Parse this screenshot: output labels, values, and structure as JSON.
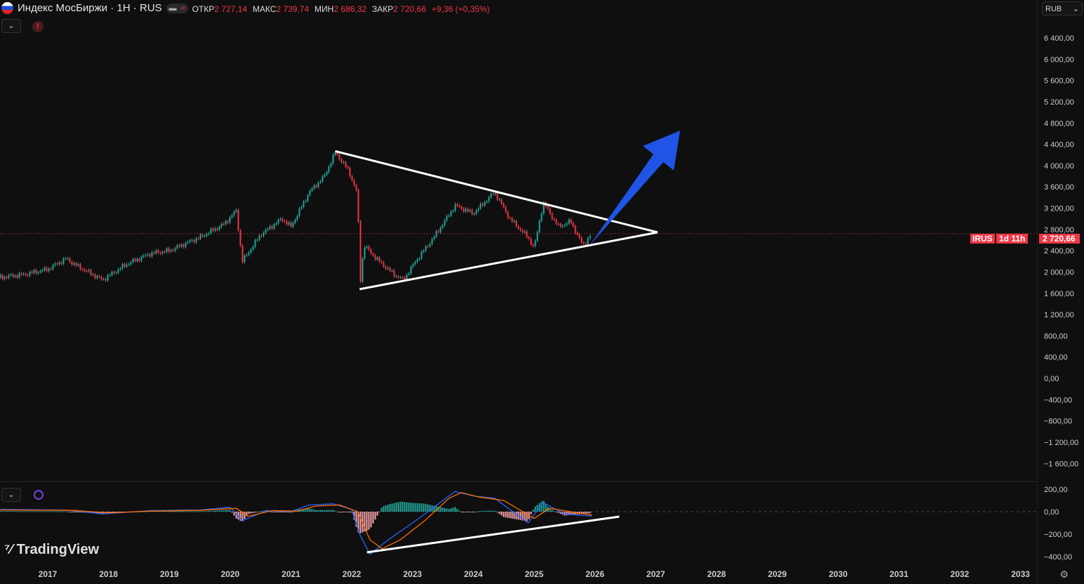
{
  "header": {
    "title": "Индекс МосБиржи · 1H · RUS",
    "open_label": "ОТКР",
    "open": "2 727,14",
    "high_label": "МАКС",
    "high": "2 739,74",
    "low_label": "МИН",
    "low": "2 686,32",
    "close_label": "ЗАКР",
    "close": "2 720,66",
    "change": "+9,36 (+0,35%)",
    "currency": "RUB"
  },
  "price_tag": {
    "symbol": "IRUS",
    "price": "2 720,66",
    "countdown": "1d 11h"
  },
  "colors": {
    "up": "#26a69a",
    "down": "#f23645",
    "drawing": "#ffffff",
    "arrow": "#1f54e6",
    "macd": "#2962ff",
    "signal": "#ff6d00"
  },
  "chart_data": [
    {
      "type": "line",
      "pane": "price",
      "yticks": [
        6400,
        6000,
        5600,
        5200,
        4800,
        4400,
        4000,
        3600,
        3200,
        2800,
        2400,
        2000,
        1600,
        1200,
        800,
        400,
        0,
        -400,
        -800,
        -1200,
        -1600
      ],
      "ytick_labels": [
        "6 400,00",
        "6 000,00",
        "5 600,00",
        "5 200,00",
        "4 800,00",
        "4 400,00",
        "4 000,00",
        "3 600,00",
        "3 200,00",
        "2 800,00",
        "2 400,00",
        "2 000,00",
        "1 600,00",
        "1 200,00",
        "800,00",
        "400,00",
        "0,00",
        "−400,00",
        "−800,00",
        "−1 200,00",
        "−1 600,00"
      ],
      "ylim": [
        -1700,
        6600
      ],
      "xlim": [
        2016.22,
        2035.0
      ],
      "last_price": 2720.66,
      "series": [
        [
          2016.22,
          1900
        ],
        [
          2016.6,
          1950
        ],
        [
          2017.0,
          2050
        ],
        [
          2017.3,
          2250
        ],
        [
          2017.5,
          2100
        ],
        [
          2017.9,
          1850
        ],
        [
          2018.3,
          2150
        ],
        [
          2018.7,
          2350
        ],
        [
          2019.0,
          2400
        ],
        [
          2019.5,
          2650
        ],
        [
          2019.9,
          2900
        ],
        [
          2020.1,
          3150
        ],
        [
          2020.2,
          2200
        ],
        [
          2020.5,
          2700
        ],
        [
          2020.85,
          3000
        ],
        [
          2021.0,
          2850
        ],
        [
          2021.3,
          3500
        ],
        [
          2021.55,
          3800
        ],
        [
          2021.73,
          4250
        ],
        [
          2021.95,
          3900
        ],
        [
          2022.1,
          3450
        ],
        [
          2022.13,
          1700
        ],
        [
          2022.2,
          2500
        ],
        [
          2022.45,
          2200
        ],
        [
          2022.7,
          1950
        ],
        [
          2022.85,
          1850
        ],
        [
          2023.05,
          2200
        ],
        [
          2023.35,
          2650
        ],
        [
          2023.7,
          3250
        ],
        [
          2024.0,
          3100
        ],
        [
          2024.35,
          3500
        ],
        [
          2024.6,
          3000
        ],
        [
          2024.9,
          2650
        ],
        [
          2025.0,
          2450
        ],
        [
          2025.15,
          3300
        ],
        [
          2025.4,
          2850
        ],
        [
          2025.6,
          2950
        ],
        [
          2025.8,
          2500
        ],
        [
          2025.95,
          2720
        ]
      ],
      "drawings": {
        "upper_trendline": [
          [
            2021.73,
            4270
          ],
          [
            2027.03,
            2745
          ]
        ],
        "lower_trendline": [
          [
            2022.13,
            1676
          ],
          [
            2027.03,
            2745
          ]
        ],
        "arrow": [
          [
            2025.91,
            2494
          ],
          [
            2027.4,
            4657
          ]
        ]
      }
    },
    {
      "type": "bar",
      "pane": "macd",
      "yticks": [
        200,
        0,
        -200,
        -400
      ],
      "ytick_labels": [
        "200,00",
        "0,00",
        "−200,00",
        "−400,00"
      ],
      "ylim": [
        -430,
        240
      ],
      "macd": [
        [
          2016.22,
          20
        ],
        [
          2017.3,
          15
        ],
        [
          2017.9,
          -20
        ],
        [
          2018.7,
          10
        ],
        [
          2019.5,
          15
        ],
        [
          2020.0,
          40
        ],
        [
          2020.2,
          -80
        ],
        [
          2020.6,
          10
        ],
        [
          2021.0,
          0
        ],
        [
          2021.3,
          60
        ],
        [
          2021.7,
          70
        ],
        [
          2022.0,
          20
        ],
        [
          2022.13,
          -200
        ],
        [
          2022.3,
          -380
        ],
        [
          2022.6,
          -250
        ],
        [
          2023.0,
          -100
        ],
        [
          2023.5,
          100
        ],
        [
          2023.7,
          180
        ],
        [
          2024.0,
          140
        ],
        [
          2024.35,
          120
        ],
        [
          2024.9,
          -100
        ],
        [
          2025.15,
          80
        ],
        [
          2025.5,
          -20
        ],
        [
          2025.95,
          -40
        ]
      ],
      "signal": [
        [
          2016.22,
          15
        ],
        [
          2017.4,
          12
        ],
        [
          2018.0,
          -10
        ],
        [
          2018.7,
          5
        ],
        [
          2019.5,
          12
        ],
        [
          2020.1,
          30
        ],
        [
          2020.3,
          -40
        ],
        [
          2020.7,
          10
        ],
        [
          2021.1,
          5
        ],
        [
          2021.4,
          50
        ],
        [
          2021.8,
          60
        ],
        [
          2022.1,
          0
        ],
        [
          2022.3,
          -250
        ],
        [
          2022.5,
          -330
        ],
        [
          2022.8,
          -250
        ],
        [
          2023.2,
          -80
        ],
        [
          2023.6,
          120
        ],
        [
          2023.8,
          170
        ],
        [
          2024.1,
          130
        ],
        [
          2024.5,
          100
        ],
        [
          2025.0,
          -60
        ],
        [
          2025.25,
          30
        ],
        [
          2025.6,
          0
        ],
        [
          2025.95,
          -30
        ]
      ],
      "drawings": {
        "trendline": [
          [
            2022.25,
            -362
          ],
          [
            2026.4,
            -44
          ]
        ]
      }
    },
    {
      "type": "axis",
      "pane": "time",
      "xticks": [
        "2017",
        "2018",
        "2019",
        "2020",
        "2021",
        "2022",
        "2023",
        "2024",
        "2025",
        "2026",
        "2027",
        "2028",
        "2029",
        "2030",
        "2031",
        "2032",
        "2033"
      ]
    }
  ],
  "branding": {
    "logo": "TradingView"
  }
}
